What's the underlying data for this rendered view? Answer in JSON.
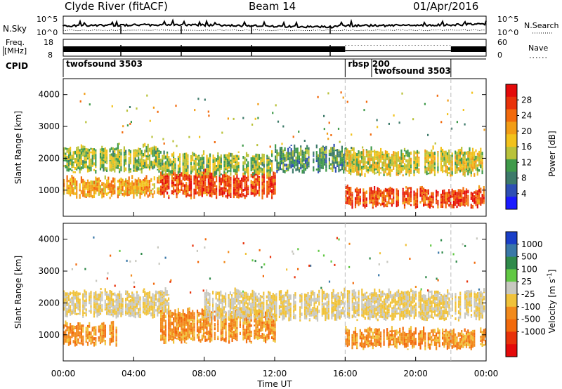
{
  "header": {
    "station": "Clyde River (fitACF)",
    "beam": "Beam 14",
    "date": "01/Apr/2016"
  },
  "strip_labels": {
    "nsky": "N.Sky",
    "nsearch": "N.Search",
    "freq_line1": "Freq.",
    "freq_line2": "[MHz]",
    "nave": "Nave",
    "cpid": "CPID",
    "noise_left_top": "10^5",
    "noise_left_bottom": "10^0",
    "noise_right_top": "10^5",
    "noise_right_bottom": "10^0",
    "freq_top": "18",
    "freq_bottom": "8",
    "nave_top": "60",
    "nave_bottom": "0"
  },
  "cpid_segments": [
    {
      "label": "twofsound 3503",
      "start_hour": 0,
      "end_hour": 16
    },
    {
      "label": "rbsp 200",
      "start_hour": 16,
      "end_hour": 22
    },
    {
      "label": "twofsound 3503",
      "start_hour": 17.5,
      "end_hour": 22
    }
  ],
  "chart_data": [
    {
      "type": "heatmap",
      "parameter": "Power",
      "ylabel": "Slant Range [km]",
      "xlabel": "Time UT",
      "x_ticks": [
        "00:00",
        "04:00",
        "08:00",
        "12:00",
        "16:00",
        "20:00",
        "00:00"
      ],
      "x_range_hours": [
        0,
        24
      ],
      "y_ticks": [
        1000,
        2000,
        3000,
        4000
      ],
      "y_range_km": [
        180,
        4500
      ],
      "colorbar_label": "Power [dB]",
      "colorbar_ticks": [
        "4",
        "8",
        "12",
        "16",
        "20",
        "24",
        "28"
      ],
      "colorbar_colors": [
        "#1a1aff",
        "#2e4fb4",
        "#3d7a6a",
        "#3f9a4a",
        "#b9c23a",
        "#f2c21c",
        "#f29d16",
        "#f26a0c",
        "#e8320a",
        "#e40a0a"
      ],
      "dashed_lines_hours": [
        16,
        22
      ],
      "bands": [
        {
          "t_start": 0,
          "t_end": 5.5,
          "r_min": 1600,
          "r_max": 2300,
          "value_db": 14
        },
        {
          "t_start": 0,
          "t_end": 5.5,
          "r_min": 800,
          "r_max": 1300,
          "value_db": 20
        },
        {
          "t_start": 5.5,
          "t_end": 12,
          "r_min": 800,
          "r_max": 1500,
          "value_db": 26
        },
        {
          "t_start": 5.5,
          "t_end": 12,
          "r_min": 1500,
          "r_max": 2100,
          "value_db": 14
        },
        {
          "t_start": 12,
          "t_end": 16,
          "r_min": 1600,
          "r_max": 2300,
          "value_db": 10
        },
        {
          "t_start": 16,
          "t_end": 24,
          "r_min": 1500,
          "r_max": 2200,
          "value_db": 16
        },
        {
          "t_start": 16,
          "t_end": 24,
          "r_min": 500,
          "r_max": 1000,
          "value_db": 26
        }
      ]
    },
    {
      "type": "heatmap",
      "parameter": "Velocity",
      "ylabel": "Slant Range [km]",
      "xlabel": "Time UT",
      "x_ticks": [
        "00:00",
        "04:00",
        "08:00",
        "12:00",
        "16:00",
        "20:00",
        "00:00"
      ],
      "x_range_hours": [
        0,
        24
      ],
      "y_ticks": [
        1000,
        2000,
        3000,
        4000
      ],
      "y_range_km": [
        180,
        4500
      ],
      "colorbar_label": "Velocity [m s^-1]",
      "colorbar_ticks": [
        "1000",
        "500",
        "100",
        "25",
        "-25",
        "-100",
        "-500",
        "-1000"
      ],
      "colorbar_colors": [
        "#1a3fc8",
        "#3a78a8",
        "#2f8a4a",
        "#62c844",
        "#c8c8c0",
        "#f0c23a",
        "#f28a1c",
        "#f26a0c",
        "#e8320a",
        "#e40a0a"
      ],
      "dashed_lines_hours": [
        16,
        22
      ],
      "bands": [
        {
          "t_start": 0,
          "t_end": 6,
          "r_min": 1600,
          "r_max": 2300,
          "value_ms": 0
        },
        {
          "t_start": 0,
          "t_end": 3,
          "r_min": 700,
          "r_max": 1300,
          "value_ms": -300
        },
        {
          "t_start": 5.5,
          "t_end": 12,
          "r_min": 800,
          "r_max": 1700,
          "value_ms": -300
        },
        {
          "t_start": 8,
          "t_end": 24,
          "r_min": 1500,
          "r_max": 2300,
          "value_ms": 0
        },
        {
          "t_start": 16,
          "t_end": 24,
          "r_min": 600,
          "r_max": 1100,
          "value_ms": -300
        }
      ]
    }
  ]
}
